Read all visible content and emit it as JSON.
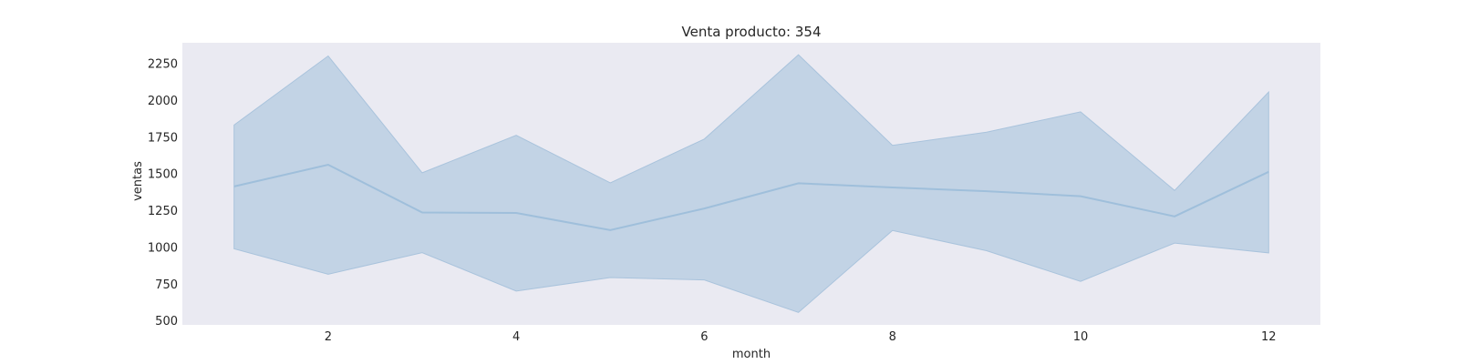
{
  "chart_data": {
    "type": "line",
    "title": "Venta producto: 354",
    "xlabel": "month",
    "ylabel": "ventas",
    "xlim": [
      0.45,
      12.55
    ],
    "ylim": [
      470,
      2390
    ],
    "x_ticks": [
      2,
      4,
      6,
      8,
      10,
      12
    ],
    "y_ticks": [
      500,
      750,
      1000,
      1250,
      1500,
      1750,
      2000,
      2250
    ],
    "grid": false,
    "colors": {
      "background": "#eaeaf2",
      "band": "#c2d3e5",
      "band_edge": "#a9c3dc",
      "line": "#9fbfdb"
    },
    "series": [
      {
        "x": [
          1,
          2,
          3,
          4,
          5,
          6,
          7,
          8,
          9,
          10,
          11,
          12
        ],
        "y": [
          1412,
          1560,
          1235,
          1232,
          1115,
          1262,
          1434,
          1405,
          1380,
          1346,
          1208,
          1512
        ],
        "lower": [
          988,
          815,
          962,
          700,
          792,
          776,
          555,
          1112,
          975,
          766,
          1027,
          960
        ],
        "upper": [
          1830,
          2300,
          1505,
          1760,
          1437,
          1735,
          2308,
          1692,
          1782,
          1920,
          1385,
          2055
        ]
      }
    ]
  }
}
